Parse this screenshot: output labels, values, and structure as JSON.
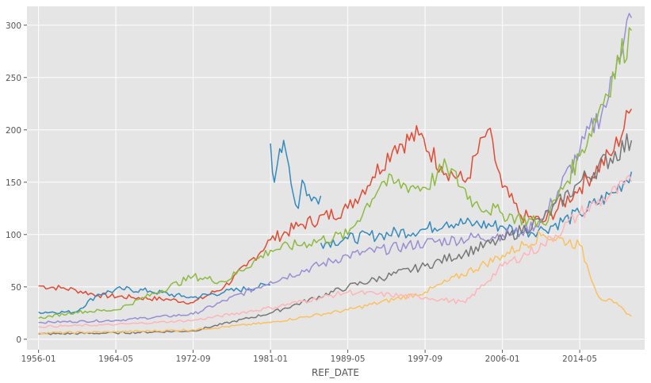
{
  "chart_data": {
    "type": "line",
    "style": "ggplot",
    "background": "#e5e5e5",
    "grid": true,
    "legend": "none",
    "title": "",
    "xlabel": "REF_DATE",
    "ylabel": "",
    "x_tick_labels": [
      "1956-01",
      "1964-05",
      "1972-09",
      "1981-01",
      "1989-05",
      "1997-09",
      "2006-01",
      "2014-05",
      ""
    ],
    "x_range": [
      "1954-10",
      "2021-05"
    ],
    "y_ticks": [
      0,
      50,
      100,
      150,
      200,
      250,
      300
    ],
    "ylim": [
      -10,
      318
    ],
    "palette": [
      "#e24a33",
      "#348abd",
      "#988ed5",
      "#777777",
      "#fbc15e",
      "#8eba42",
      "#ffb5b8"
    ],
    "series_estimated": [
      {
        "color": "#e24a33",
        "x": [
          "1956-01",
          "1958-06",
          "1960-01",
          "1962-06",
          "1966-01",
          "1970-01",
          "1972-09",
          "1976-01",
          "1978-06",
          "1981-01",
          "1984-01",
          "1989-05",
          "1992-01",
          "1994-06",
          "1997-01",
          "1999-06",
          "2002-01",
          "2004-06",
          "2006-01",
          "2008-01",
          "2010-06",
          "2014-05",
          "2018-01",
          "2019-12"
        ],
        "values": [
          51,
          49,
          47,
          42,
          40,
          38,
          35,
          50,
          70,
          95,
          108,
          125,
          155,
          185,
          195,
          165,
          150,
          200,
          145,
          118,
          112,
          145,
          180,
          220
        ]
      },
      {
        "color": "#348abd",
        "x": [
          "1956-01",
          "1960-01",
          "1962-06",
          "1965-01",
          "1968-01",
          "1971-06",
          "1972-09",
          "1976-01",
          "1981-01"
        ],
        "values": [
          26,
          26,
          43,
          48,
          46,
          41,
          40,
          45,
          52
        ]
      },
      {
        "color": "#348abd",
        "x": [
          "1981-01",
          "1981-06",
          "1982-01",
          "1982-06",
          "1983-01",
          "1983-06",
          "1984-01",
          "1984-06",
          "1985-06",
          "1986-06"
        ],
        "values": [
          187,
          150,
          182,
          190,
          165,
          140,
          125,
          152,
          132,
          137
        ]
      },
      {
        "color": "#348abd",
        "x": [
          "1986-06",
          "1989-05",
          "1993-01",
          "1997-09",
          "2000-01",
          "2003-01",
          "2006-01",
          "2008-01",
          "2010-06",
          "2014-05",
          "2018-01",
          "2019-12"
        ],
        "values": [
          92,
          96,
          100,
          105,
          112,
          110,
          108,
          102,
          105,
          120,
          140,
          160
        ]
      },
      {
        "color": "#988ed5",
        "x": [
          "1956-01",
          "1964-05",
          "1972-09",
          "1981-01",
          "1989-05",
          "1997-09",
          "2006-01",
          "2008-01",
          "2010-06",
          "2014-05",
          "2017-06",
          "2018-06",
          "2019-06",
          "2019-12"
        ],
        "values": [
          16,
          18,
          24,
          55,
          80,
          92,
          100,
          102,
          115,
          180,
          230,
          270,
          305,
          307
        ]
      },
      {
        "color": "#777777",
        "x": [
          "1956-01",
          "1964-05",
          "1972-09",
          "1981-01",
          "1989-05",
          "1997-09",
          "2006-01",
          "2010-06",
          "2014-05",
          "2019-12"
        ],
        "values": [
          5,
          6,
          8,
          25,
          50,
          70,
          95,
          115,
          150,
          190
        ]
      },
      {
        "color": "#fbc15e",
        "x": [
          "1956-01",
          "1964-05",
          "1972-09",
          "1981-01",
          "1989-05",
          "1997-09",
          "2006-01",
          "2010-06",
          "2014-05",
          "2016-06",
          "2018-01",
          "2019-12"
        ],
        "values": [
          6,
          7,
          9,
          16,
          28,
          45,
          80,
          100,
          90,
          40,
          35,
          22
        ]
      },
      {
        "color": "#8eba42",
        "x": [
          "1956-01",
          "1960-01",
          "1964-05",
          "1972-09",
          "1976-01",
          "1981-01",
          "1989-05",
          "1993-01",
          "1997-09",
          "2000-01",
          "2003-01",
          "2006-01",
          "2010-06",
          "2014-05",
          "2019-12"
        ],
        "values": [
          20,
          26,
          28,
          60,
          55,
          85,
          100,
          150,
          145,
          165,
          130,
          120,
          110,
          175,
          295
        ]
      },
      {
        "color": "#ffb5b8",
        "x": [
          "1956-01",
          "1964-05",
          "1972-09",
          "1981-01",
          "1989-05",
          "1997-09",
          "2002-01",
          "2006-01",
          "2010-06",
          "2014-05",
          "2019-12"
        ],
        "values": [
          12,
          14,
          18,
          30,
          45,
          40,
          35,
          70,
          90,
          120,
          150
        ]
      }
    ]
  }
}
